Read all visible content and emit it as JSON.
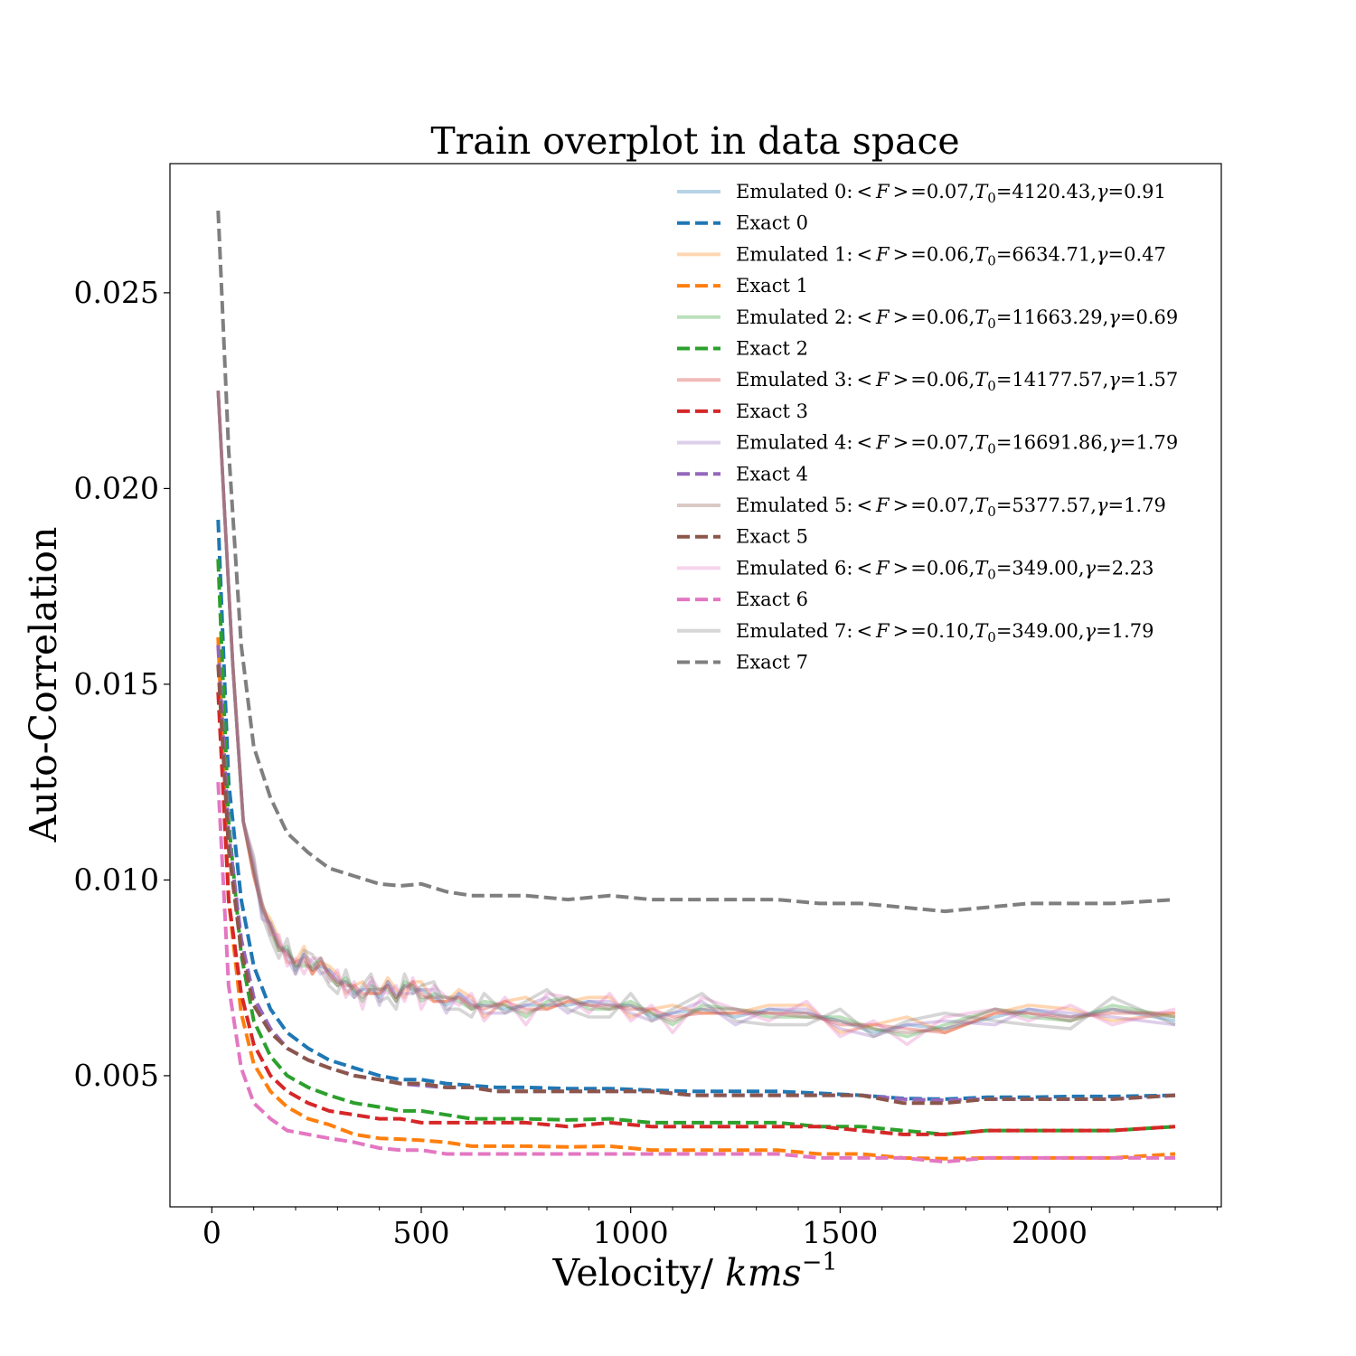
{
  "chart_data": {
    "type": "line",
    "title": "Train overplot in data space",
    "xlabel_prefix": "Velocity/ ",
    "xlabel_math": "kms",
    "xlabel_sup": "−1",
    "ylabel": "Auto-Correlation",
    "xlim": [
      -100,
      2410
    ],
    "ylim": [
      0.00165,
      0.0283
    ],
    "x_ticks": [
      0,
      500,
      1000,
      1500,
      2000
    ],
    "x_tick_labels": [
      "0",
      "500",
      "1000",
      "1500",
      "2000"
    ],
    "y_ticks": [
      0.005,
      0.01,
      0.015,
      0.02,
      0.025
    ],
    "y_tick_labels": [
      "0.005",
      "0.010",
      "0.015",
      "0.020",
      "0.025"
    ],
    "grid": false,
    "legend_position": "upper-right",
    "colors": [
      "#1f77b4",
      "#ff7f0e",
      "#2ca02c",
      "#d62728",
      "#9467bd",
      "#8c564b",
      "#e377c2",
      "#7f7f7f"
    ],
    "legend": [
      {
        "kind": "emulated",
        "prefix": "Emulated 0:",
        "f": "=0.07,",
        "t": "=4120.43,",
        "g": "=0.91"
      },
      {
        "kind": "exact",
        "label": "Exact 0"
      },
      {
        "kind": "emulated",
        "prefix": "Emulated 1:",
        "f": "=0.06,",
        "t": "=6634.71,",
        "g": "=0.47"
      },
      {
        "kind": "exact",
        "label": "Exact 1"
      },
      {
        "kind": "emulated",
        "prefix": "Emulated 2:",
        "f": "=0.06,",
        "t": "=11663.29,",
        "g": "=0.69"
      },
      {
        "kind": "exact",
        "label": "Exact 2"
      },
      {
        "kind": "emulated",
        "prefix": "Emulated 3:",
        "f": "=0.06,",
        "t": "=14177.57,",
        "g": "=1.57"
      },
      {
        "kind": "exact",
        "label": "Exact 3"
      },
      {
        "kind": "emulated",
        "prefix": "Emulated 4:",
        "f": "=0.07,",
        "t": "=16691.86,",
        "g": "=1.79"
      },
      {
        "kind": "exact",
        "label": "Exact 4"
      },
      {
        "kind": "emulated",
        "prefix": "Emulated 5:",
        "f": "=0.07,",
        "t": "=5377.57,",
        "g": "=1.79"
      },
      {
        "kind": "exact",
        "label": "Exact 5"
      },
      {
        "kind": "emulated",
        "prefix": "Emulated 6:",
        "f": "=0.06,",
        "t": "=349.00,",
        "g": "=2.23"
      },
      {
        "kind": "exact",
        "label": "Exact 6"
      },
      {
        "kind": "emulated",
        "prefix": "Emulated 7:",
        "f": "=0.10,",
        "t": "=349.00,",
        "g": "=1.79"
      },
      {
        "kind": "exact",
        "label": "Exact 7"
      }
    ],
    "exact_x": [
      15,
      40,
      70,
      100,
      140,
      180,
      230,
      280,
      340,
      400,
      450,
      500,
      560,
      620,
      680,
      750,
      850,
      950,
      1050,
      1150,
      1250,
      1350,
      1450,
      1550,
      1650,
      1750,
      1850,
      1950,
      2050,
      2150,
      2300
    ],
    "exact_series": [
      {
        "name": "Exact 0",
        "values": [
          0.0192,
          0.0125,
          0.0095,
          0.0078,
          0.0067,
          0.0061,
          0.0057,
          0.0054,
          0.0052,
          0.005,
          0.0049,
          0.0049,
          0.0048,
          0.00475,
          0.0047,
          0.0047,
          0.00467,
          0.00467,
          0.00463,
          0.0046,
          0.0046,
          0.0046,
          0.00455,
          0.0045,
          0.00442,
          0.0044,
          0.00445,
          0.00445,
          0.00447,
          0.00447,
          0.0045
        ]
      },
      {
        "name": "Exact 1",
        "values": [
          0.0162,
          0.0095,
          0.0066,
          0.0053,
          0.0046,
          0.0042,
          0.0039,
          0.00375,
          0.0035,
          0.0034,
          0.00338,
          0.00335,
          0.0033,
          0.0032,
          0.0032,
          0.0032,
          0.00318,
          0.0032,
          0.0031,
          0.0031,
          0.0031,
          0.0031,
          0.003,
          0.003,
          0.0029,
          0.00288,
          0.0029,
          0.0029,
          0.0029,
          0.0029,
          0.003
        ]
      },
      {
        "name": "Exact 2",
        "values": [
          0.0182,
          0.0115,
          0.0081,
          0.0064,
          0.0055,
          0.005,
          0.0047,
          0.0045,
          0.0043,
          0.0042,
          0.0041,
          0.0041,
          0.004,
          0.0039,
          0.0039,
          0.0039,
          0.00387,
          0.0039,
          0.0038,
          0.0038,
          0.0038,
          0.0038,
          0.0037,
          0.0037,
          0.0036,
          0.0035,
          0.0036,
          0.0036,
          0.0036,
          0.0036,
          0.0037
        ]
      },
      {
        "name": "Exact 3",
        "values": [
          0.0148,
          0.0095,
          0.0071,
          0.0058,
          0.005,
          0.0046,
          0.0043,
          0.0041,
          0.004,
          0.0039,
          0.0039,
          0.0038,
          0.0038,
          0.0038,
          0.0038,
          0.0038,
          0.0037,
          0.0038,
          0.0037,
          0.0037,
          0.0037,
          0.0037,
          0.0037,
          0.0036,
          0.0035,
          0.0035,
          0.0036,
          0.0036,
          0.0036,
          0.0036,
          0.0037
        ]
      },
      {
        "name": "Exact 4",
        "values": [
          0.016,
          0.0112,
          0.0085,
          0.007,
          0.0062,
          0.0057,
          0.0054,
          0.0052,
          0.005,
          0.0049,
          0.0048,
          0.00475,
          0.0047,
          0.0047,
          0.0046,
          0.0046,
          0.0046,
          0.0046,
          0.0046,
          0.0045,
          0.0045,
          0.0045,
          0.0045,
          0.0045,
          0.0044,
          0.00437,
          0.0044,
          0.0044,
          0.0044,
          0.0044,
          0.0045
        ]
      },
      {
        "name": "Exact 5",
        "values": [
          0.0155,
          0.0108,
          0.0082,
          0.0068,
          0.0061,
          0.0057,
          0.0054,
          0.0052,
          0.005,
          0.0049,
          0.0048,
          0.0048,
          0.0047,
          0.0047,
          0.0046,
          0.0046,
          0.0046,
          0.0046,
          0.0046,
          0.0045,
          0.0045,
          0.0045,
          0.0045,
          0.0045,
          0.0043,
          0.0043,
          0.0044,
          0.0044,
          0.0044,
          0.0044,
          0.0045
        ]
      },
      {
        "name": "Exact 6",
        "values": [
          0.0125,
          0.0073,
          0.0052,
          0.0043,
          0.0039,
          0.0036,
          0.0035,
          0.0034,
          0.0033,
          0.00315,
          0.0031,
          0.0031,
          0.003,
          0.003,
          0.003,
          0.003,
          0.003,
          0.003,
          0.003,
          0.003,
          0.003,
          0.003,
          0.0029,
          0.0029,
          0.0029,
          0.0028,
          0.0029,
          0.0029,
          0.0029,
          0.0029,
          0.0029
        ]
      },
      {
        "name": "Exact 7",
        "values": [
          0.0271,
          0.021,
          0.016,
          0.0134,
          0.0121,
          0.0112,
          0.0107,
          0.0103,
          0.0101,
          0.0099,
          0.00985,
          0.0099,
          0.0097,
          0.0096,
          0.0096,
          0.0096,
          0.0095,
          0.0096,
          0.0095,
          0.0095,
          0.0095,
          0.0095,
          0.0094,
          0.0094,
          0.0093,
          0.0092,
          0.0093,
          0.0094,
          0.0094,
          0.0094,
          0.0095
        ]
      }
    ],
    "emulated_x": [
      15,
      30,
      50,
      75,
      100,
      120,
      140,
      160,
      180,
      200,
      220,
      240,
      260,
      280,
      300,
      320,
      340,
      360,
      380,
      400,
      420,
      440,
      460,
      480,
      500,
      530,
      560,
      590,
      620,
      650,
      700,
      750,
      800,
      850,
      900,
      950,
      1000,
      1050,
      1100,
      1170,
      1250,
      1330,
      1420,
      1500,
      1580,
      1660,
      1750,
      1870,
      1950,
      2050,
      2150,
      2300
    ],
    "emulated_base": [
      0.0225,
      0.0195,
      0.0155,
      0.0115,
      0.0102,
      0.0093,
      0.0088,
      0.0083,
      0.0081,
      0.0078,
      0.008,
      0.0077,
      0.0079,
      0.0076,
      0.0074,
      0.0073,
      0.0072,
      0.0071,
      0.0072,
      0.0071,
      0.0073,
      0.007,
      0.0072,
      0.0073,
      0.0071,
      0.007,
      0.0069,
      0.007,
      0.0068,
      0.0067,
      0.0068,
      0.0067,
      0.0068,
      0.0069,
      0.0068,
      0.0068,
      0.0067,
      0.0066,
      0.0065,
      0.0067,
      0.0066,
      0.0066,
      0.0066,
      0.0063,
      0.0062,
      0.0062,
      0.0062,
      0.0066,
      0.0066,
      0.0065,
      0.0066,
      0.0065
    ],
    "emulated_offsets": [
      [
        0,
        0.0001,
        -0.0001,
        0.0001,
        0,
        -0.0001,
        0.0001
      ],
      [
        0.0002,
        -0.0002,
        0.0001,
        0.0003,
        -0.0001,
        0,
        0.0002
      ],
      [
        -0.0001,
        0.0002,
        0,
        -0.0002,
        0.0001,
        0.0001,
        -0.0001
      ],
      [
        0,
        0,
        0.0001,
        0,
        -0.0001,
        0,
        0
      ],
      [
        0.0001,
        -0.0001,
        -0.0002,
        0.0001,
        0.0002,
        -0.0003,
        0.0001
      ],
      [
        -0.0001,
        0.0001,
        0,
        -0.0001,
        0,
        0.0001,
        0
      ],
      [
        0.0003,
        -0.0003,
        0.0002,
        -0.0004,
        0.0003,
        0.0001,
        -0.0002
      ],
      [
        -0.0003,
        0.0004,
        -0.0002,
        0.0002,
        0.0004,
        -0.0002,
        -0.0003
      ]
    ]
  }
}
